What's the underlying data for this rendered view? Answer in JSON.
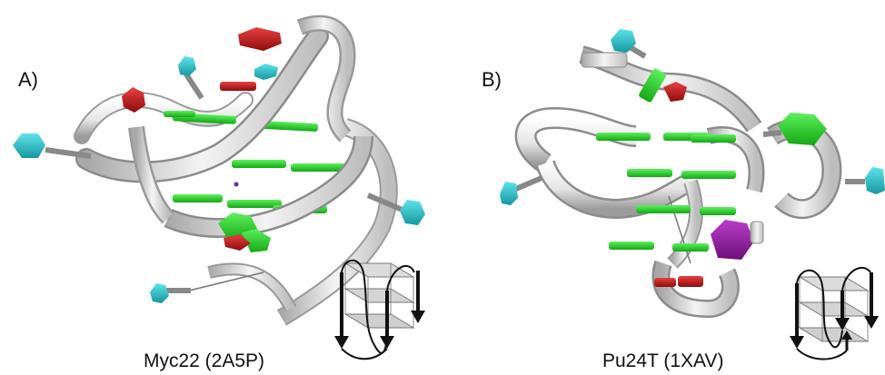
{
  "panels": [
    {
      "label": "A)",
      "caption": "Myc22 (2A5P)"
    },
    {
      "label": "B)",
      "caption": "Pu24T (1XAV)"
    }
  ],
  "colors": {
    "ribbon": "#e8e8e8",
    "ribbon_shade": "#9a9a9a",
    "g_quartet": "#22cc22",
    "adenine_cyan": "#22c4cc",
    "base_red": "#cc1111",
    "base_purple": "#9a1ba8",
    "background": "#ffffff"
  }
}
